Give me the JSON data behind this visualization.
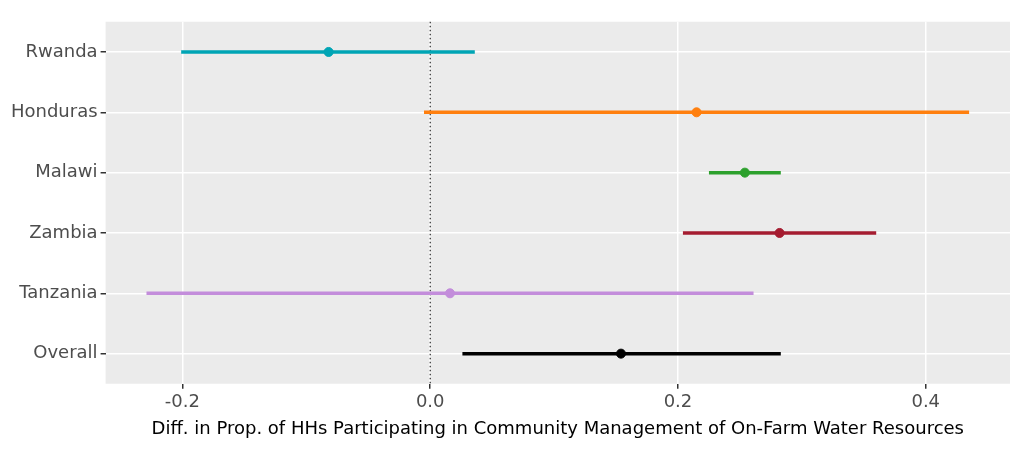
{
  "chart_data": {
    "type": "scatter",
    "orientation": "horizontal",
    "xlabel": "Diff. in Prop. of HHs Participating in Community Management of On-Farm Water Resources",
    "categories": [
      "Rwanda",
      "Honduras",
      "Malawi",
      "Zambia",
      "Tanzania",
      "Overall"
    ],
    "values": [
      -0.082,
      0.215,
      0.254,
      0.282,
      0.016,
      0.154
    ],
    "errors": [
      [
        -0.201,
        0.036
      ],
      [
        -0.005,
        0.435
      ],
      [
        0.225,
        0.283
      ],
      [
        0.204,
        0.36
      ],
      [
        -0.229,
        0.261
      ],
      [
        0.026,
        0.283
      ]
    ],
    "colors": [
      "#00a5b5",
      "#ff7f0e",
      "#2ca02c",
      "#a51c30",
      "#c38ddb",
      "#000000"
    ],
    "xlim": [
      -0.262,
      0.468
    ],
    "xticks": [
      {
        "value": -0.2,
        "label": "-0.2"
      },
      {
        "value": 0,
        "label": "0.0"
      },
      {
        "value": 0.2,
        "label": "0.2"
      },
      {
        "value": 0.4,
        "label": "0.4"
      }
    ],
    "grid": true,
    "marker": "circle",
    "ref_lines": [
      {
        "axis": "x",
        "value": 0,
        "line_style": "dotted",
        "color": "#000000"
      }
    ]
  }
}
